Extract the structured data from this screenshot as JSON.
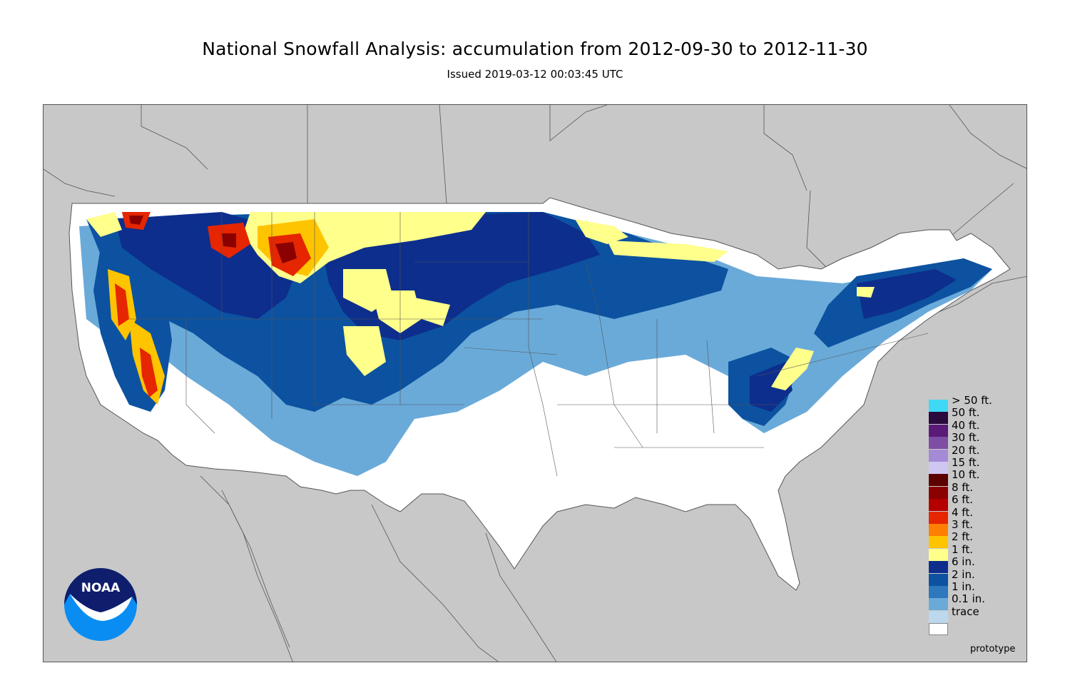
{
  "header": {
    "title": "National Snowfall Analysis: accumulation from 2012-09-30 to 2012-11-30",
    "subtitle": "Issued 2019-03-12 00:03:45 UTC"
  },
  "map": {
    "region": "Contiguous United States",
    "background_color": "#c8c8c8",
    "land_color": "#ffffff",
    "border_color": "#555555"
  },
  "legend": {
    "items": [
      {
        "label": "> 50 ft.",
        "color": "#3fd9f5"
      },
      {
        "label": "50 ft.",
        "color": "#2b0a3d"
      },
      {
        "label": "40 ft.",
        "color": "#5a1a78"
      },
      {
        "label": "30 ft.",
        "color": "#7d4ea3"
      },
      {
        "label": "20 ft.",
        "color": "#a58ad6"
      },
      {
        "label": "15 ft.",
        "color": "#cfc7f2"
      },
      {
        "label": "10 ft.",
        "color": "#5c0000"
      },
      {
        "label": "8 ft.",
        "color": "#8b0000"
      },
      {
        "label": "6 ft.",
        "color": "#b50000"
      },
      {
        "label": "4 ft.",
        "color": "#e52600"
      },
      {
        "label": "3 ft.",
        "color": "#ff8000"
      },
      {
        "label": "2 ft.",
        "color": "#ffc400"
      },
      {
        "label": "1 ft.",
        "color": "#ffff8c"
      },
      {
        "label": "6 in.",
        "color": "#0d2e8c"
      },
      {
        "label": "2 in.",
        "color": "#0c52a0"
      },
      {
        "label": "1 in.",
        "color": "#2e78bd"
      },
      {
        "label": "0.1 in.",
        "color": "#6aaad9"
      },
      {
        "label": "trace",
        "color": "#bdd7ec"
      },
      {
        "label": "",
        "color": "#ffffff"
      }
    ]
  },
  "footer": {
    "prototype_label": "prototype"
  },
  "logo": {
    "text": "NOAA"
  }
}
